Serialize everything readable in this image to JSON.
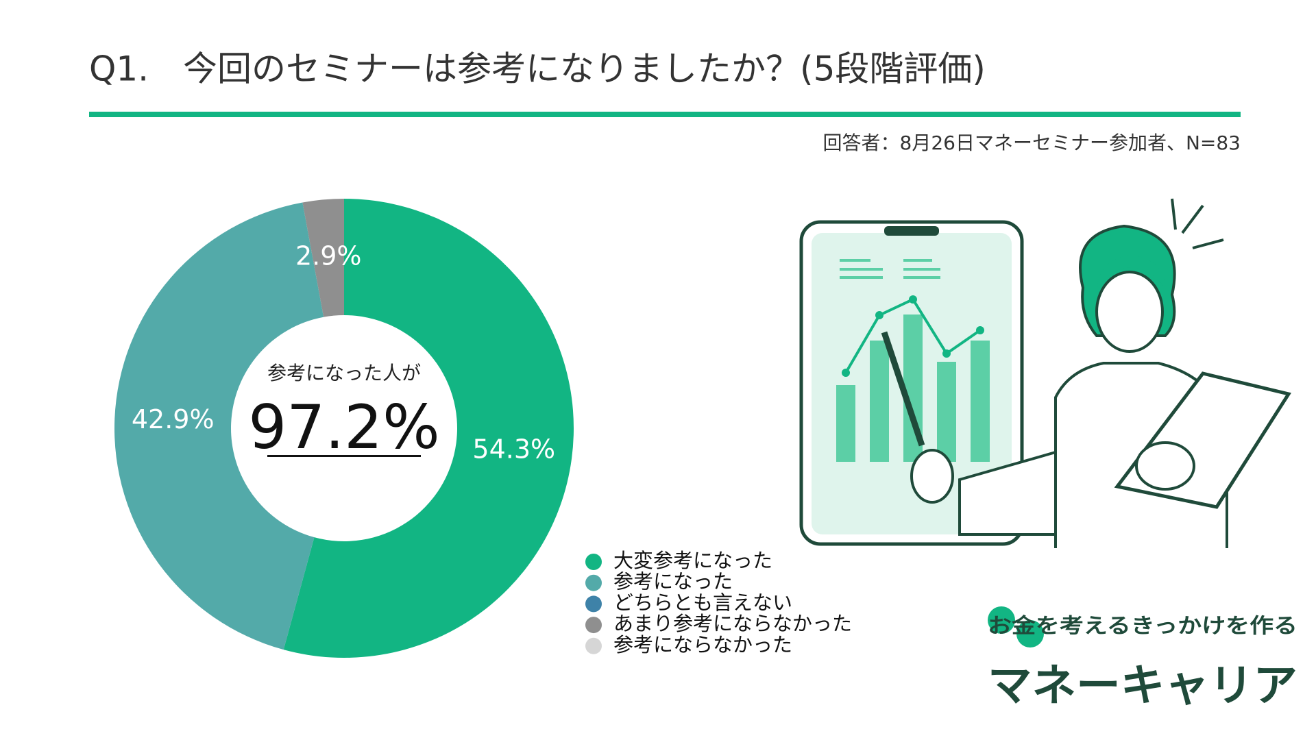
{
  "chart_data": {
    "type": "donut",
    "title": "Q1.　今回のセミナーは参考になりましたか？(5段階評価)",
    "subtitle": "回答者：8月26日マネーセミナー参加者、N=83",
    "center_caption": "参考になった人が",
    "center_label": "97.2%",
    "categories": [
      "大変参考になった",
      "参考になった",
      "どちらとも言えない",
      "あまり参考にならなかった",
      "参考にならなかった"
    ],
    "values": [
      54.3,
      42.9,
      0,
      2.9,
      0
    ],
    "value_labels": [
      "54.3%",
      "42.9%",
      null,
      "2.9%",
      null
    ],
    "colors": [
      "#12b583",
      "#53aaa9",
      "#3e82a8",
      "#8f8f8f",
      "#d6d6d6"
    ],
    "logo_tagline": "お金を考えるきっかけを作る",
    "logo_name": "マネーキャリア"
  }
}
